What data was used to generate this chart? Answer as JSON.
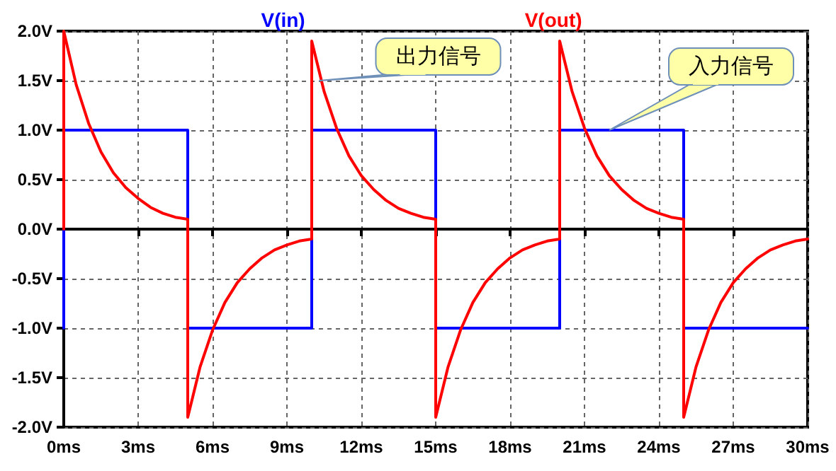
{
  "chart_data": {
    "type": "line",
    "xlim": [
      0,
      30
    ],
    "xticks": [
      {
        "value": 0,
        "label": "0ms"
      },
      {
        "value": 3,
        "label": "3ms"
      },
      {
        "value": 6,
        "label": "6ms"
      },
      {
        "value": 9,
        "label": "9ms"
      },
      {
        "value": 12,
        "label": "12ms"
      },
      {
        "value": 15,
        "label": "15ms"
      },
      {
        "value": 18,
        "label": "18ms"
      },
      {
        "value": 21,
        "label": "21ms"
      },
      {
        "value": 24,
        "label": "24ms"
      },
      {
        "value": 27,
        "label": "27ms"
      },
      {
        "value": 30,
        "label": "30ms"
      }
    ],
    "ylim": [
      -2,
      2
    ],
    "yticks": [
      {
        "value": -2,
        "label": "-2.0V"
      },
      {
        "value": -1.5,
        "label": "-1.5V"
      },
      {
        "value": -1,
        "label": "-1.0V"
      },
      {
        "value": -0.5,
        "label": "-0.5V"
      },
      {
        "value": 0,
        "label": "0.0V"
      },
      {
        "value": 0.5,
        "label": "0.5V"
      },
      {
        "value": 1,
        "label": "1.0V"
      },
      {
        "value": 1.5,
        "label": "1.5V"
      },
      {
        "value": 2,
        "label": "2.0V"
      }
    ],
    "grid": true,
    "legend": "top",
    "marker": "none",
    "line_style": "solid",
    "series": [
      {
        "name": "V(in)",
        "color": "#0000ff",
        "x": [
          0,
          0,
          5,
          5,
          10,
          10,
          15,
          15,
          20,
          20,
          25,
          25,
          30
        ],
        "values": [
          -1,
          1,
          1,
          -1,
          -1,
          1,
          1,
          -1,
          -1,
          1,
          1,
          -1,
          -1
        ]
      },
      {
        "name": "V(out)",
        "color": "#ff0000",
        "x": [
          0,
          0,
          0.5,
          1,
          1.5,
          2,
          2.5,
          3,
          3.5,
          4,
          4.5,
          5,
          5,
          5.5,
          6,
          6.5,
          7,
          7.5,
          8,
          8.5,
          9,
          9.5,
          10,
          10,
          10.5,
          11,
          11.5,
          12,
          12.5,
          13,
          13.5,
          14,
          14.5,
          15,
          15,
          15.5,
          16,
          16.5,
          17,
          17.5,
          18,
          18.5,
          19,
          19.5,
          20,
          20,
          20.5,
          21,
          21.5,
          22,
          22.5,
          23,
          23.5,
          24,
          24.5,
          25,
          25,
          25.5,
          26,
          26.5,
          27,
          27.5,
          28,
          28.5,
          29,
          29.5,
          30
        ],
        "values": [
          0,
          2,
          1.46,
          1.07,
          0.78,
          0.57,
          0.42,
          0.31,
          0.22,
          0.16,
          0.12,
          0.1,
          -1.9,
          -1.39,
          -1.02,
          -0.74,
          -0.54,
          -0.4,
          -0.29,
          -0.21,
          -0.16,
          -0.12,
          -0.1,
          1.9,
          1.39,
          1.02,
          0.74,
          0.54,
          0.4,
          0.29,
          0.21,
          0.16,
          0.12,
          0.1,
          -1.9,
          -1.39,
          -1.02,
          -0.74,
          -0.54,
          -0.4,
          -0.29,
          -0.21,
          -0.16,
          -0.12,
          -0.1,
          1.9,
          1.39,
          1.02,
          0.74,
          0.54,
          0.4,
          0.29,
          0.21,
          0.16,
          0.12,
          0.1,
          -1.9,
          -1.39,
          -1.02,
          -0.74,
          -0.54,
          -0.4,
          -0.29,
          -0.21,
          -0.16,
          -0.12,
          -0.1
        ]
      }
    ],
    "annotations": [
      {
        "text": "出力信号",
        "x": 10.3,
        "y": 1.5
      },
      {
        "text": "入力信号",
        "x": 22,
        "y": 1
      }
    ]
  }
}
